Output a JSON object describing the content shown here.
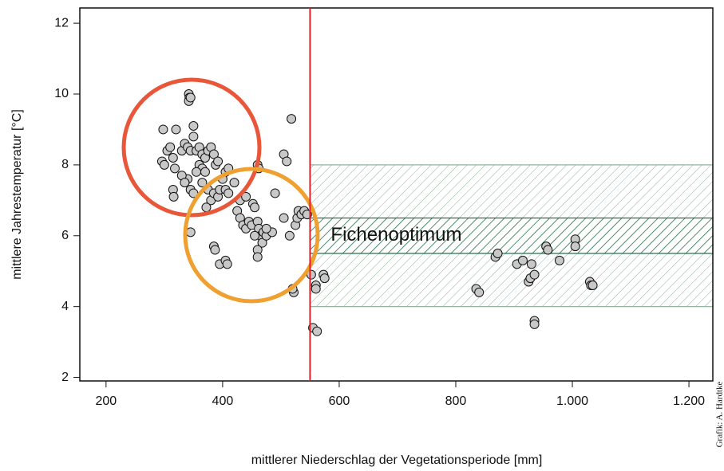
{
  "chart_data": {
    "type": "scatter",
    "xlabel": "mittlerer Niederschlag der Vegetationsperiode [mm]",
    "ylabel": "mittlere Jahrestemperatur [°C]",
    "annotation": "Fichenoptimum",
    "credit": "Grafik: A. Hardtke",
    "color": "#c8c8c8",
    "vline": {
      "value": 550,
      "color": "#e0202a"
    },
    "bands": [
      {
        "from": 4,
        "to": 8,
        "color": "#8fb09c"
      },
      {
        "from": 5.5,
        "to": 6.5,
        "color": "#1f6b45"
      }
    ],
    "xlim": [
      155,
      1241
    ],
    "ylim": [
      1.9,
      12.43
    ],
    "xticks": [
      200,
      400,
      600,
      800,
      {
        "value": 1000,
        "label": "1.000"
      },
      {
        "value": 1200,
        "label": "1.200"
      }
    ],
    "yticks": [
      2,
      4,
      6,
      8,
      10,
      12
    ],
    "x": [
      342,
      343,
      342,
      345,
      350,
      518,
      298,
      320,
      296,
      300,
      305,
      310,
      315,
      318,
      330,
      335,
      340,
      345,
      350,
      355,
      360,
      365,
      370,
      375,
      380,
      385,
      388,
      392,
      360,
      365,
      370,
      355,
      340,
      330,
      335,
      345,
      350,
      315,
      316,
      365,
      375,
      380,
      385,
      392,
      395,
      405,
      410,
      420,
      405,
      410,
      460,
      462,
      505,
      510,
      490,
      372,
      400,
      430,
      440,
      425,
      430,
      435,
      440,
      445,
      450,
      452,
      455,
      460,
      462,
      465,
      470,
      468,
      475,
      485,
      460,
      460,
      345,
      385,
      387,
      395,
      405,
      408,
      505,
      515,
      525,
      528,
      530,
      535,
      540,
      545,
      522,
      520,
      475,
      455,
      552,
      560,
      560,
      573,
      575,
      555,
      562,
      835,
      840,
      868,
      872,
      905,
      915,
      925,
      928,
      930,
      935,
      935,
      935,
      955,
      958,
      978,
      1005,
      1005,
      1030,
      1032,
      1035
    ],
    "values": [
      10.0,
      9.9,
      9.8,
      9.9,
      9.1,
      9.3,
      9.0,
      9.0,
      8.1,
      8.0,
      8.4,
      8.5,
      8.2,
      7.9,
      8.4,
      8.6,
      8.5,
      8.4,
      8.8,
      8.4,
      8.5,
      8.3,
      8.2,
      8.4,
      8.5,
      8.3,
      8.0,
      8.1,
      8.0,
      7.9,
      7.8,
      7.8,
      7.6,
      7.7,
      7.5,
      7.3,
      7.2,
      7.3,
      7.1,
      7.5,
      7.3,
      7.0,
      7.2,
      7.1,
      7.3,
      7.8,
      7.9,
      7.5,
      7.3,
      7.2,
      8.0,
      7.9,
      8.3,
      8.1,
      7.2,
      6.8,
      7.6,
      7.0,
      7.1,
      6.7,
      6.5,
      6.3,
      6.2,
      6.4,
      6.3,
      6.9,
      6.8,
      6.4,
      6.2,
      6.0,
      6.1,
      5.8,
      6.0,
      6.1,
      5.6,
      5.4,
      6.1,
      5.7,
      5.6,
      5.2,
      5.3,
      5.2,
      6.5,
      6.0,
      6.3,
      6.5,
      6.7,
      6.6,
      6.7,
      6.6,
      4.4,
      4.5,
      6.2,
      6.0,
      4.9,
      4.6,
      4.5,
      4.9,
      4.8,
      3.4,
      3.3,
      4.5,
      4.4,
      5.4,
      5.5,
      5.2,
      5.3,
      4.7,
      4.8,
      5.2,
      4.9,
      3.6,
      3.5,
      5.7,
      5.6,
      5.3,
      5.9,
      5.7,
      4.7,
      4.6,
      4.6
    ]
  }
}
